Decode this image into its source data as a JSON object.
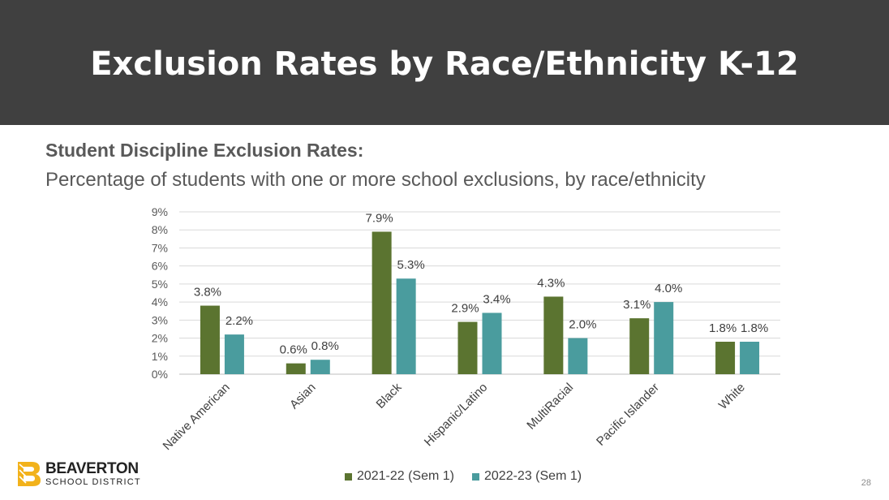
{
  "slide": {
    "title": "Exclusion Rates by Race/Ethnicity K-12",
    "subtitle": "Student Discipline Exclusion Rates:",
    "description": "Percentage of students with one or more school exclusions, by race/ethnicity",
    "page_number": "28"
  },
  "logo": {
    "name": "BEAVERTON",
    "sub": "SCHOOL DISTRICT",
    "icon": "beaverton-b-logo-icon",
    "color": "#f2b21b"
  },
  "chart_data": {
    "type": "bar",
    "categories": [
      "Native American",
      "Asian",
      "Black",
      "Hispanic/Latino",
      "MultiRacial",
      "Pacific Islander",
      "White"
    ],
    "series": [
      {
        "name": "2021-22 (Sem 1)",
        "color": "#5b7430",
        "values": [
          3.8,
          0.6,
          7.9,
          2.9,
          4.3,
          3.1,
          1.8
        ],
        "labels": [
          "3.8%",
          "0.6%",
          "7.9%",
          "2.9%",
          "4.3%",
          "3.1%",
          "1.8%"
        ]
      },
      {
        "name": "2022-23 (Sem 1)",
        "color": "#4a9c9e",
        "values": [
          2.2,
          0.8,
          5.3,
          3.4,
          2.0,
          4.0,
          1.8
        ],
        "labels": [
          "2.2%",
          "0.8%",
          "5.3%",
          "3.4%",
          "2.0%",
          "4.0%",
          "1.8%"
        ]
      }
    ],
    "y_ticks": [
      "0%",
      "1%",
      "2%",
      "3%",
      "4%",
      "5%",
      "6%",
      "7%",
      "8%",
      "9%"
    ],
    "ylim": [
      0,
      9
    ],
    "grid": true,
    "legend_position": "bottom"
  }
}
